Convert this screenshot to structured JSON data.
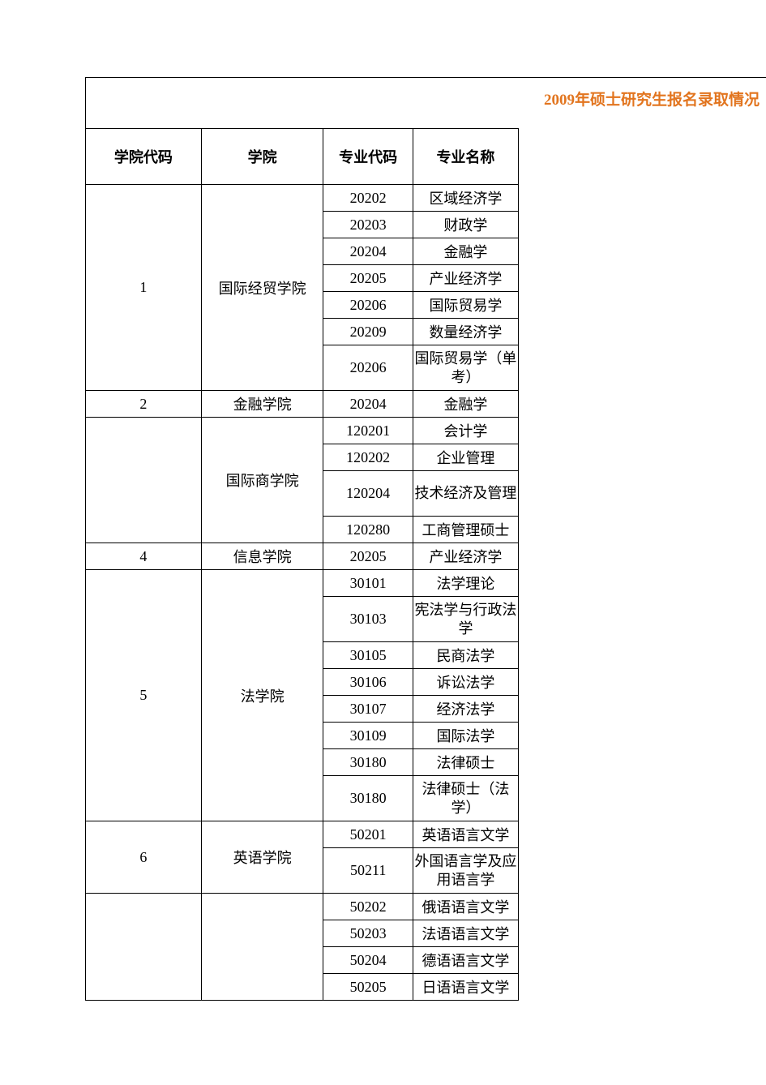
{
  "title": "2009年硕士研究生报名录取情况",
  "title_color": "#e2751f",
  "headers": {
    "college_code": "学院代码",
    "college": "学院",
    "major_code": "专业代码",
    "major_name": "专业名称"
  },
  "groups": [
    {
      "code": "1",
      "college": "国际经贸学院",
      "rows": [
        {
          "major_code": "20202",
          "major_name": "区域经济学",
          "tall": false
        },
        {
          "major_code": "20203",
          "major_name": "财政学",
          "tall": false
        },
        {
          "major_code": "20204",
          "major_name": "金融学",
          "tall": false
        },
        {
          "major_code": "20205",
          "major_name": "产业经济学",
          "tall": false
        },
        {
          "major_code": "20206",
          "major_name": "国际贸易学",
          "tall": false
        },
        {
          "major_code": "20209",
          "major_name": "数量经济学",
          "tall": false
        },
        {
          "major_code": "20206",
          "major_name": "国际贸易学（单考）",
          "tall": true
        }
      ]
    },
    {
      "code": "2",
      "college": "金融学院",
      "rows": [
        {
          "major_code": "20204",
          "major_name": "金融学",
          "tall": false
        }
      ]
    },
    {
      "code": "",
      "college": "国际商学院",
      "rows": [
        {
          "major_code": "120201",
          "major_name": "会计学",
          "tall": false
        },
        {
          "major_code": "120202",
          "major_name": "企业管理",
          "tall": false
        },
        {
          "major_code": "120204",
          "major_name": "技术经济及管理",
          "tall": true
        },
        {
          "major_code": "120280",
          "major_name": "工商管理硕士",
          "tall": false
        }
      ]
    },
    {
      "code": "4",
      "college": "信息学院",
      "rows": [
        {
          "major_code": "20205",
          "major_name": "产业经济学",
          "tall": false
        }
      ]
    },
    {
      "code": "5",
      "college": "法学院",
      "rows": [
        {
          "major_code": "30101",
          "major_name": "法学理论",
          "tall": false
        },
        {
          "major_code": "30103",
          "major_name": "宪法学与行政法学",
          "tall": true
        },
        {
          "major_code": "30105",
          "major_name": "民商法学",
          "tall": false
        },
        {
          "major_code": "30106",
          "major_name": "诉讼法学",
          "tall": false
        },
        {
          "major_code": "30107",
          "major_name": "经济法学",
          "tall": false
        },
        {
          "major_code": "30109",
          "major_name": "国际法学",
          "tall": false
        },
        {
          "major_code": "30180",
          "major_name": "法律硕士",
          "tall": false
        },
        {
          "major_code": "30180",
          "major_name": "法律硕士（法学）",
          "tall": true
        }
      ]
    },
    {
      "code": "6",
      "college": "英语学院",
      "rows": [
        {
          "major_code": "50201",
          "major_name": "英语语言文学",
          "tall": false
        },
        {
          "major_code": "50211",
          "major_name": "外国语言学及应用语言学",
          "tall": true
        }
      ]
    },
    {
      "code": "",
      "college": "",
      "rows": [
        {
          "major_code": "50202",
          "major_name": "俄语语言文学",
          "tall": false
        },
        {
          "major_code": "50203",
          "major_name": "法语语言文学",
          "tall": false
        },
        {
          "major_code": "50204",
          "major_name": "德语语言文学",
          "tall": false
        },
        {
          "major_code": "50205",
          "major_name": "日语语言文学",
          "tall": false
        }
      ]
    }
  ]
}
